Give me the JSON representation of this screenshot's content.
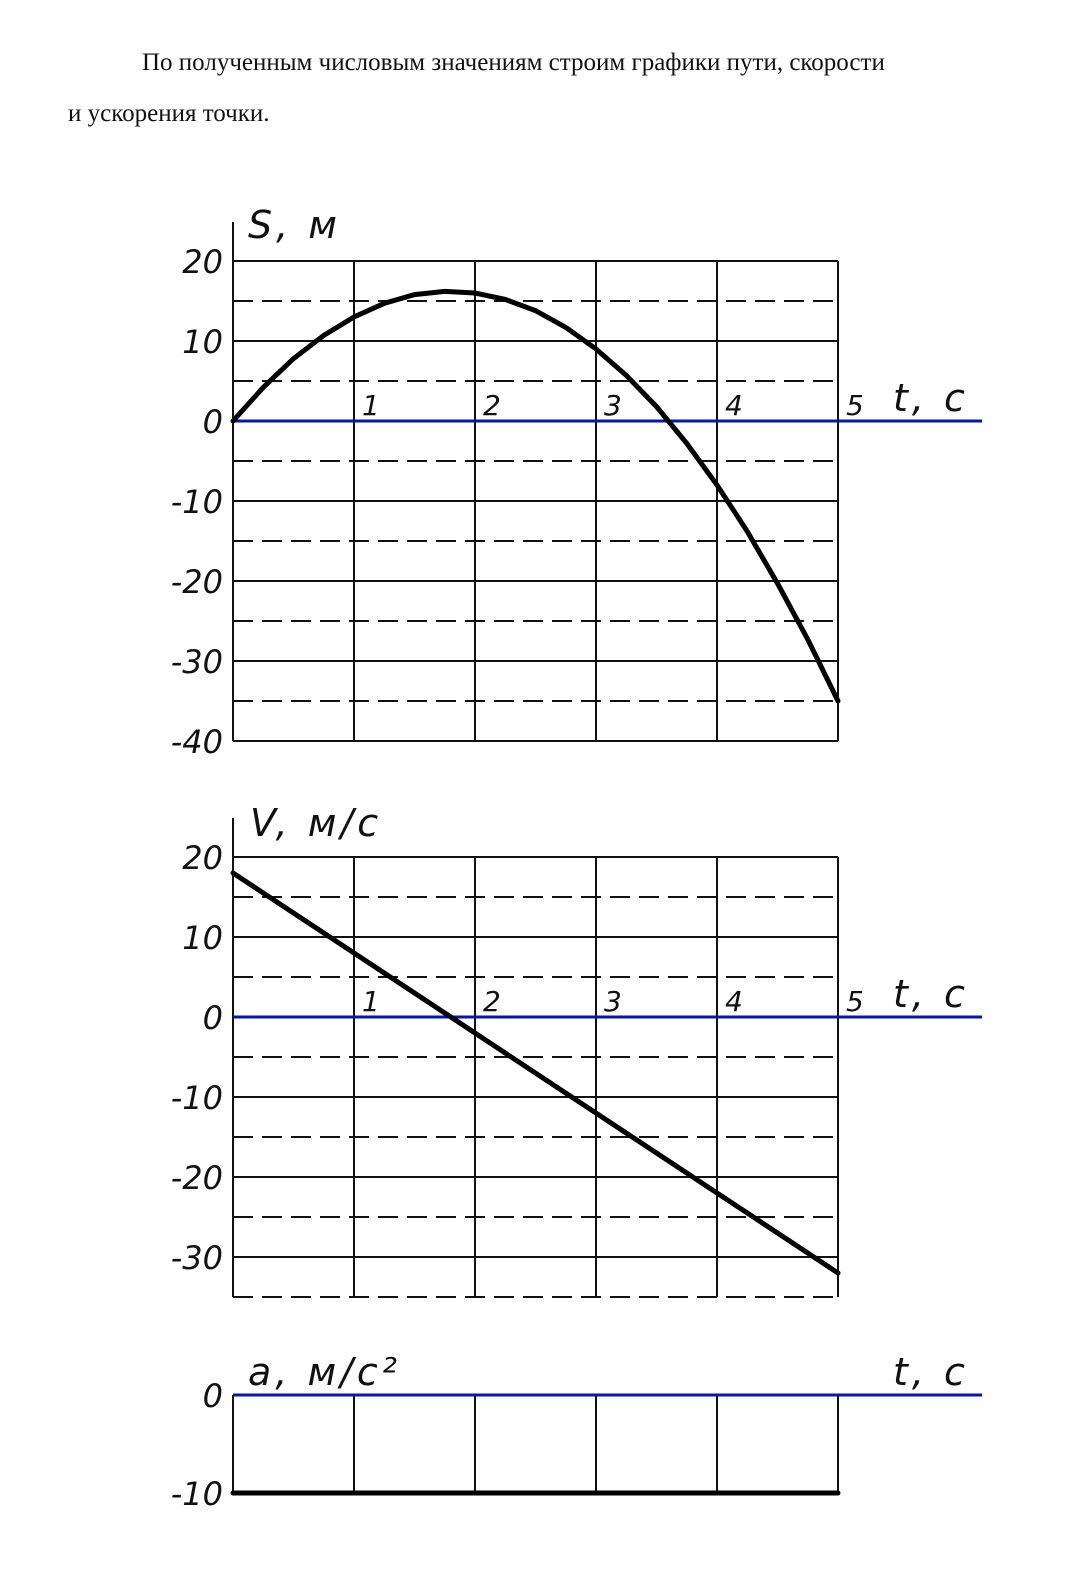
{
  "text": {
    "lines": [
      "По полученным числовым значениям строим графики пути, скорости",
      "и ускорения точки."
    ]
  },
  "chart_data": [
    {
      "type": "line",
      "y_label": "S, м",
      "x_label": "t, с",
      "x": [
        0,
        0.25,
        0.5,
        0.75,
        1,
        1.25,
        1.5,
        1.75,
        2,
        2.25,
        2.5,
        2.75,
        3,
        3.25,
        3.5,
        3.75,
        4,
        4.25,
        4.5,
        4.75,
        5
      ],
      "series": [
        {
          "color": "#000000",
          "values": [
            0,
            4.2,
            7.8,
            10.7,
            13,
            14.7,
            15.8,
            16.2,
            16,
            15.2,
            13.8,
            11.7,
            9,
            5.7,
            1.8,
            -2.8,
            -8,
            -13.8,
            -20.3,
            -27.3,
            -35
          ]
        }
      ],
      "xlim": [
        0,
        5
      ],
      "xticks": [
        1,
        2,
        3,
        4,
        5
      ],
      "ylim": [
        -40,
        20
      ],
      "yticks": [
        20,
        10,
        0,
        -10,
        -20,
        -30,
        -40
      ],
      "minor_yticks": [
        15,
        5,
        -5,
        -15,
        -25,
        -35
      ],
      "zero_color": "#0a14b4",
      "show_xtick_labels": true
    },
    {
      "type": "line",
      "y_label": "V, м/с",
      "x_label": "t, с",
      "x": [
        0,
        5
      ],
      "series": [
        {
          "color": "#000000",
          "values": [
            18,
            -32
          ]
        }
      ],
      "xlim": [
        0,
        5
      ],
      "xticks": [
        1,
        2,
        3,
        4,
        5
      ],
      "ylim": [
        -35,
        20
      ],
      "yticks": [
        20,
        10,
        0,
        -10,
        -20,
        -30
      ],
      "minor_yticks": [
        15,
        5,
        -5,
        -15,
        -25,
        -35
      ],
      "zero_color": "#0a14b4",
      "show_xtick_labels": true
    },
    {
      "type": "line",
      "y_label": "a, м/с²",
      "x_label": "t, с",
      "x": [
        0,
        5
      ],
      "series": [
        {
          "color": "#000000",
          "values": [
            -10,
            -10
          ]
        }
      ],
      "xlim": [
        0,
        5
      ],
      "xticks": [
        1,
        2,
        3,
        4,
        5
      ],
      "ylim": [
        -10,
        0
      ],
      "yticks": [
        0,
        -10
      ],
      "minor_yticks": [],
      "zero_color": "#0a14b4",
      "show_xtick_labels": false
    }
  ]
}
